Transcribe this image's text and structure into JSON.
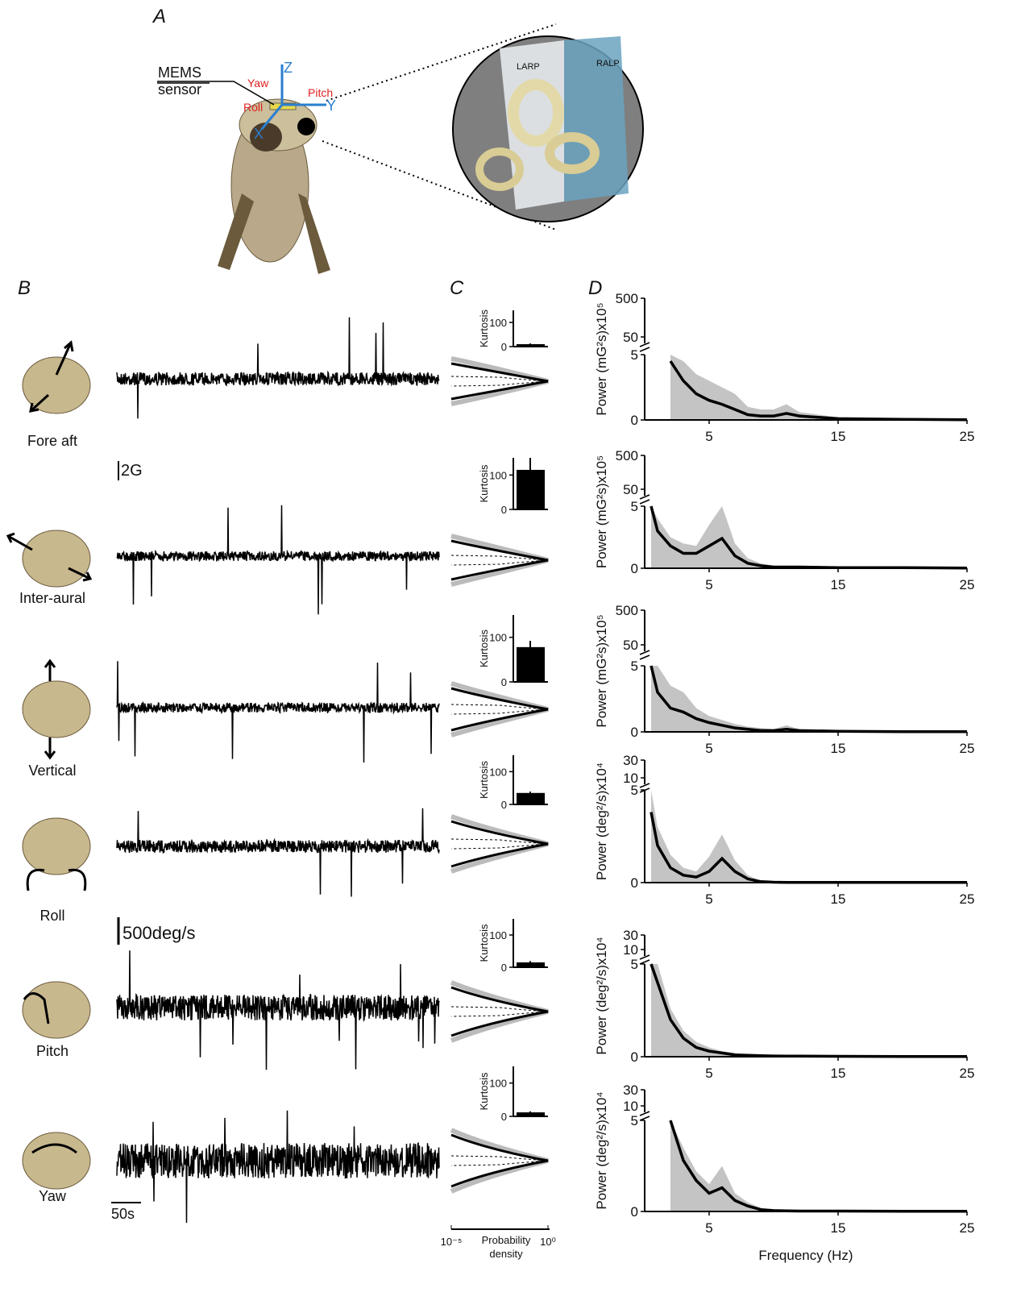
{
  "panel_labels": [
    "A",
    "B",
    "C",
    "D"
  ],
  "panel_a": {
    "sensor": [
      "MEMS",
      "sensor"
    ],
    "axes": [
      "Z",
      "Y",
      "X"
    ],
    "rotations": [
      "Yaw",
      "Pitch",
      "Roll"
    ],
    "planes": [
      "LARP",
      "RALP"
    ]
  },
  "panel_b": {
    "rows": [
      "Fore aft",
      "Inter-aural",
      "Vertical",
      "Roll",
      "Pitch",
      "Yaw"
    ],
    "scale_bars": [
      "2G",
      "500deg/s",
      "50s"
    ]
  },
  "chart_data": [
    {
      "type": "bar",
      "y_label": "Kurtosis",
      "values": [
        10,
        115,
        78,
        35,
        15,
        12
      ],
      "errors": [
        3,
        35,
        14,
        4,
        4,
        3
      ],
      "ylim": [
        0,
        150
      ],
      "yticks": [
        0,
        100
      ],
      "color": "#000000",
      "pdf_xticks": [
        {
          "value": -5,
          "label": "10⁻⁵"
        },
        {
          "value": 0,
          "label": "10⁰"
        }
      ],
      "pdf_xlabel": [
        "Probability",
        "density"
      ]
    },
    {
      "type": "line",
      "xlabel": "Frequency (Hz)",
      "xlim": [
        0,
        25
      ],
      "xticks": [
        5,
        15,
        25
      ],
      "color": "#000000",
      "band_color": "#c4c4c4",
      "x": [
        0.5,
        1,
        2,
        3,
        4,
        5,
        6,
        7,
        8,
        9,
        10,
        11,
        12,
        15,
        20,
        25
      ],
      "panels": [
        {
          "y_label": "Power (mG²s)x10⁵",
          "ylim": [
            0,
            5
          ],
          "yticks": [
            0,
            5
          ],
          "upper_yticks": [
            50,
            500
          ],
          "values": [
            null,
            null,
            4.5,
            3,
            2,
            1.5,
            1.2,
            0.8,
            0.4,
            0.3,
            0.3,
            0.5,
            0.3,
            0.1,
            0.05,
            0.02
          ],
          "band_upper": [
            null,
            null,
            5,
            4.5,
            3.5,
            3,
            2.5,
            2,
            1,
            0.8,
            0.8,
            1.2,
            0.6,
            0.2,
            0.1,
            0.05
          ]
        },
        {
          "y_label": "Power (mG²s)x10⁵",
          "ylim": [
            0,
            5
          ],
          "yticks": [
            0,
            5
          ],
          "upper_yticks": [
            50,
            500
          ],
          "values": [
            5,
            3,
            1.8,
            1.2,
            1.2,
            1.8,
            2.4,
            1,
            0.4,
            0.2,
            0.1,
            0.1,
            0.1,
            0.05,
            0.05,
            0.02
          ],
          "band_upper": [
            5,
            4,
            2.5,
            2,
            1.8,
            3.5,
            5,
            2,
            0.8,
            0.4,
            0.2,
            0.2,
            0.2,
            0.1,
            0.1,
            0.05
          ]
        },
        {
          "y_label": "Power (mG²s)x10⁵",
          "ylim": [
            0,
            5
          ],
          "yticks": [
            0,
            5
          ],
          "upper_yticks": [
            50,
            500
          ],
          "values": [
            5,
            3,
            1.8,
            1.5,
            1,
            0.7,
            0.5,
            0.3,
            0.2,
            0.1,
            0.1,
            0.2,
            0.1,
            0.05,
            0.02,
            0.01
          ],
          "band_upper": [
            5,
            5,
            3.5,
            3,
            1.8,
            1.2,
            0.9,
            0.6,
            0.4,
            0.3,
            0.2,
            0.5,
            0.2,
            0.1,
            0.05,
            0.02
          ]
        },
        {
          "y_label": "Power (deg²/s)x10⁴",
          "ylim": [
            0,
            5
          ],
          "yticks": [
            0,
            5
          ],
          "upper_yticks": [
            10,
            30
          ],
          "values": [
            3.8,
            2,
            0.8,
            0.4,
            0.3,
            0.6,
            1.3,
            0.6,
            0.2,
            0.05,
            0.02,
            0.01,
            0.01,
            0.01,
            0.01,
            0.01
          ],
          "band_upper": [
            5,
            3,
            1.5,
            0.8,
            0.6,
            1.4,
            2.6,
            1.2,
            0.4,
            0.1,
            0.05,
            0.02,
            0.02,
            0.02,
            0.02,
            0.01
          ]
        },
        {
          "y_label": "Power (deg²/s)x10⁴",
          "ylim": [
            0,
            5
          ],
          "yticks": [
            0,
            5
          ],
          "upper_yticks": [
            10,
            30
          ],
          "values": [
            5,
            4,
            2,
            1,
            0.5,
            0.3,
            0.2,
            0.1,
            0.08,
            0.05,
            0.04,
            0.03,
            0.03,
            0.02,
            0.01,
            0.01
          ],
          "band_upper": [
            5,
            5,
            2.6,
            1.4,
            0.8,
            0.5,
            0.3,
            0.2,
            0.1,
            0.08,
            0.06,
            0.05,
            0.04,
            0.03,
            0.02,
            0.01
          ]
        },
        {
          "y_label": "Power (deg²/s)x10⁴",
          "ylim": [
            0,
            5
          ],
          "yticks": [
            0,
            5
          ],
          "upper_yticks": [
            10,
            30
          ],
          "values": [
            null,
            null,
            5,
            2.8,
            1.7,
            1,
            1.3,
            0.6,
            0.3,
            0.1,
            0.05,
            0.03,
            0.02,
            0.02,
            0.01,
            0.01
          ],
          "band_upper": [
            null,
            null,
            5,
            3.5,
            2.2,
            1.5,
            2.5,
            1,
            0.5,
            0.2,
            0.1,
            0.05,
            0.04,
            0.03,
            0.02,
            0.01
          ]
        }
      ]
    }
  ]
}
